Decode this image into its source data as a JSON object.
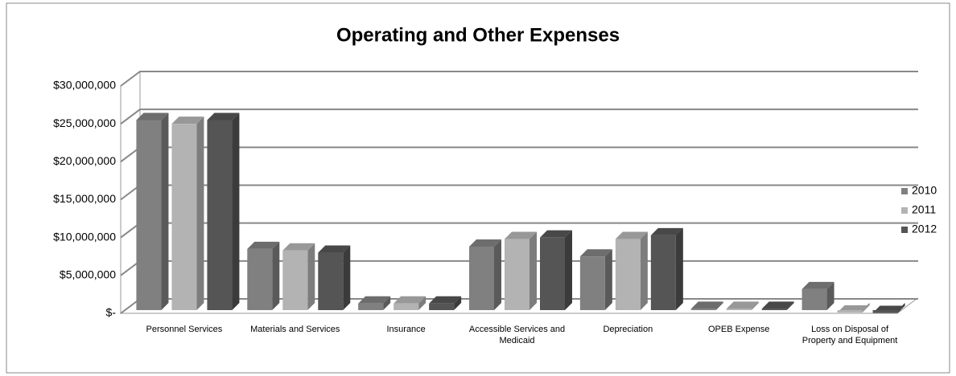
{
  "chart_data": {
    "type": "bar3d",
    "title": "Operating and Other Expenses",
    "categories": [
      "Personnel Services",
      "Materials and Services",
      "Insurance",
      "Accessible Services and Medicaid",
      "Depreciation",
      "OPEB Expense",
      "Loss on Disposal of Property and Equipment"
    ],
    "series": [
      {
        "name": "2010",
        "color": "#808080",
        "values": [
          25500000,
          8500000,
          1300000,
          8800000,
          7500000,
          600000,
          3200000
        ]
      },
      {
        "name": "2011",
        "color": "#b3b3b3",
        "values": [
          25000000,
          8300000,
          1300000,
          9800000,
          9800000,
          600000,
          100000
        ]
      },
      {
        "name": "2012",
        "color": "#555555",
        "values": [
          25500000,
          8000000,
          1300000,
          10000000,
          10300000,
          600000,
          50000
        ]
      }
    ],
    "ylim": [
      0,
      30000000
    ],
    "yticks": [
      {
        "value": 0,
        "label": "$-"
      },
      {
        "value": 5000000,
        "label": "$5,000,000"
      },
      {
        "value": 10000000,
        "label": "$10,000,000"
      },
      {
        "value": 15000000,
        "label": "$15,000,000"
      },
      {
        "value": 20000000,
        "label": "$20,000,000"
      },
      {
        "value": 25000000,
        "label": "$25,000,000"
      },
      {
        "value": 30000000,
        "label": "$30,000,000"
      }
    ],
    "grid": true,
    "legend": "right"
  }
}
